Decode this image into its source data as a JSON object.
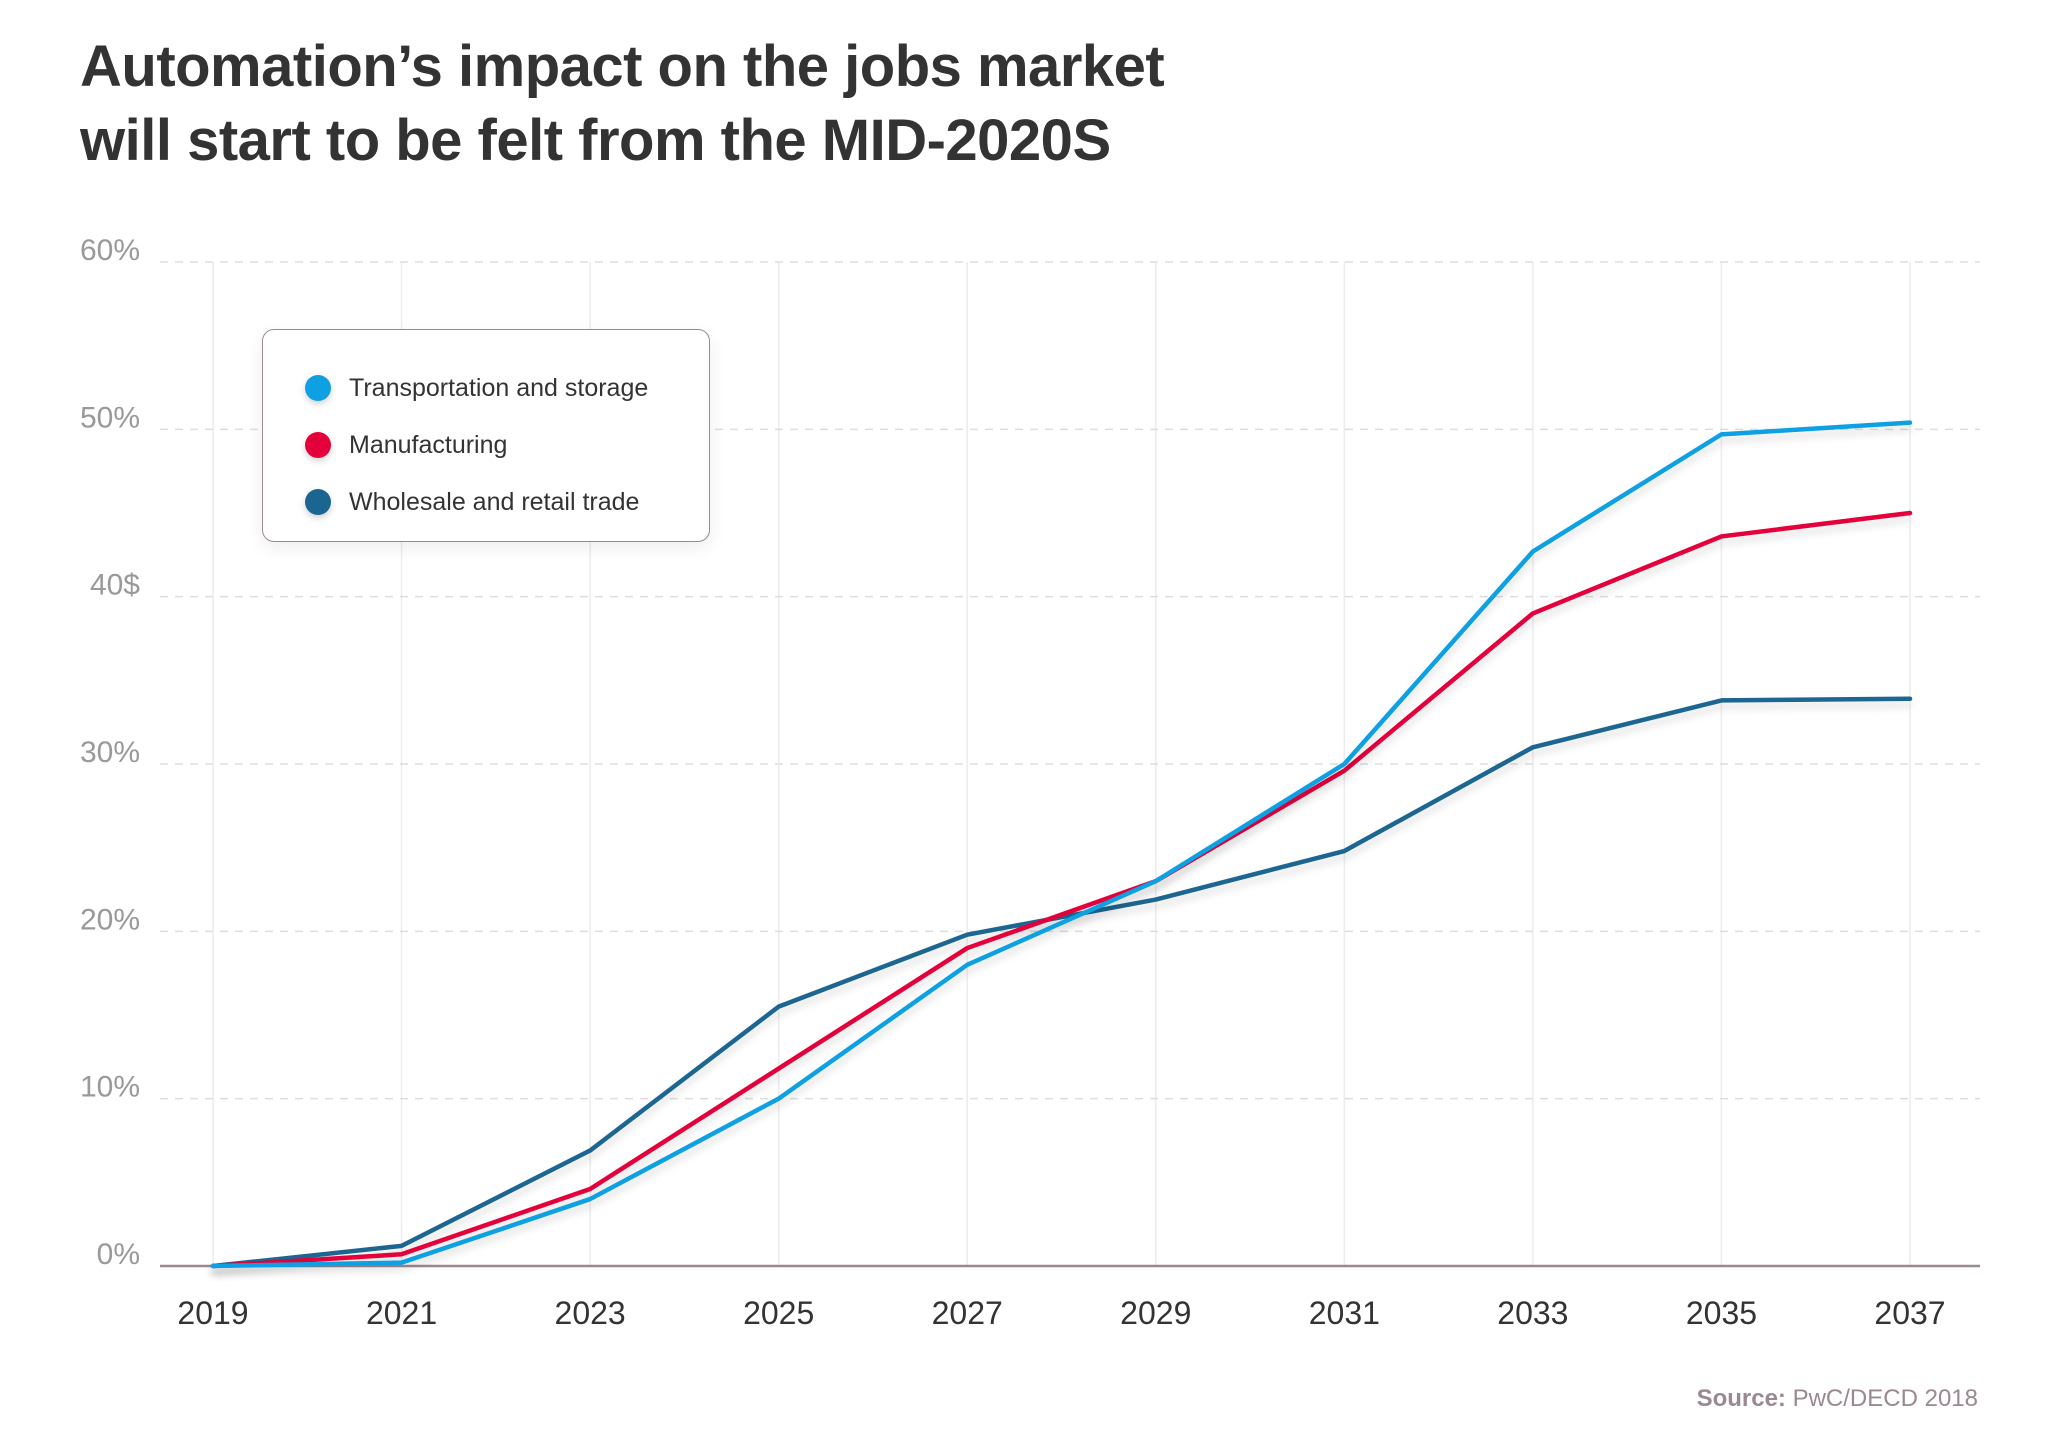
{
  "title_lines": [
    "Automation’s impact on the jobs market",
    "will start to be felt from the MID-2020S"
  ],
  "chart_data": {
    "type": "line",
    "title": "Automation’s impact on the jobs market will start to be felt from the MID-2020S",
    "xlabel": "",
    "ylabel": "",
    "x": [
      2019,
      2021,
      2023,
      2025,
      2027,
      2029,
      2031,
      2033,
      2035,
      2037
    ],
    "x_tick_labels": [
      "2019",
      "2021",
      "2023",
      "2025",
      "2027",
      "2029",
      "2031",
      "2033",
      "2035",
      "2037"
    ],
    "y_ticks": [
      0,
      10,
      20,
      30,
      40,
      50,
      60
    ],
    "y_tick_labels": [
      "0%",
      "10%",
      "20%",
      "30%",
      "40$",
      "50%",
      "60%"
    ],
    "ylim": [
      0,
      60
    ],
    "grid": true,
    "legend_position": "top-left",
    "series": [
      {
        "name": "Transportation and storage",
        "color": "#0ea0e2",
        "values": [
          0,
          0.2,
          4,
          10,
          18,
          23,
          30,
          42.7,
          49.7,
          50.4
        ]
      },
      {
        "name": "Manufacturing",
        "color": "#e4003b",
        "values": [
          0,
          0.7,
          4.6,
          11.8,
          19,
          23,
          29.6,
          39,
          43.6,
          45
        ]
      },
      {
        "name": "Wholesale and retail trade",
        "color": "#1a6691",
        "values": [
          0,
          1.2,
          6.9,
          15.5,
          19.8,
          21.9,
          24.8,
          31,
          33.8,
          33.9
        ]
      }
    ]
  },
  "source": {
    "label": "Source:",
    "text": "PwC/DECD 2018"
  }
}
